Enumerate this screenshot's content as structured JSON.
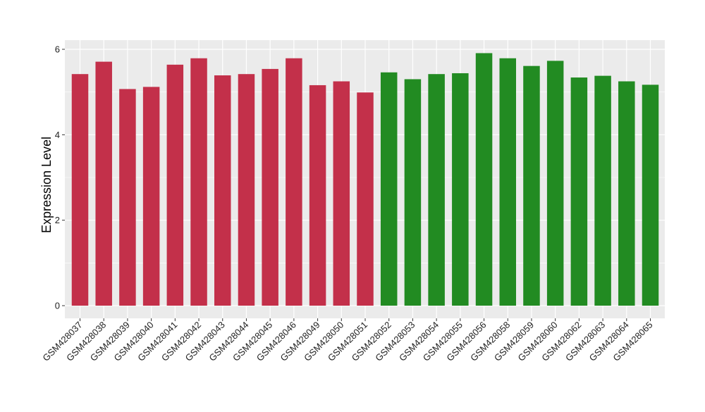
{
  "chart_data": {
    "type": "bar",
    "title": "",
    "xlabel": "",
    "ylabel": "Expression Level",
    "ylim": [
      0,
      6.2
    ],
    "yticks": [
      0,
      2,
      4,
      6
    ],
    "grid": true,
    "legend": "none",
    "colors": {
      "group_a": "#C3304A",
      "group_b": "#228B22",
      "panel_bg": "#EBEBEB",
      "grid": "#FFFFFF"
    },
    "categories": [
      "GSM428037",
      "GSM428038",
      "GSM428039",
      "GSM428040",
      "GSM428041",
      "GSM428042",
      "GSM428043",
      "GSM428044",
      "GSM428045",
      "GSM428046",
      "GSM428049",
      "GSM428050",
      "GSM428051",
      "GSM428052",
      "GSM428053",
      "GSM428054",
      "GSM428055",
      "GSM428056",
      "GSM428058",
      "GSM428059",
      "GSM428060",
      "GSM428062",
      "GSM428063",
      "GSM428064",
      "GSM428065"
    ],
    "values": [
      5.42,
      5.71,
      5.07,
      5.12,
      5.64,
      5.79,
      5.39,
      5.42,
      5.54,
      5.79,
      5.16,
      5.25,
      4.99,
      5.46,
      5.3,
      5.42,
      5.44,
      5.91,
      5.79,
      5.61,
      5.73,
      5.34,
      5.38,
      5.25,
      5.17
    ],
    "groups": [
      "a",
      "a",
      "a",
      "a",
      "a",
      "a",
      "a",
      "a",
      "a",
      "a",
      "a",
      "a",
      "a",
      "b",
      "b",
      "b",
      "b",
      "b",
      "b",
      "b",
      "b",
      "b",
      "b",
      "b",
      "b"
    ]
  }
}
